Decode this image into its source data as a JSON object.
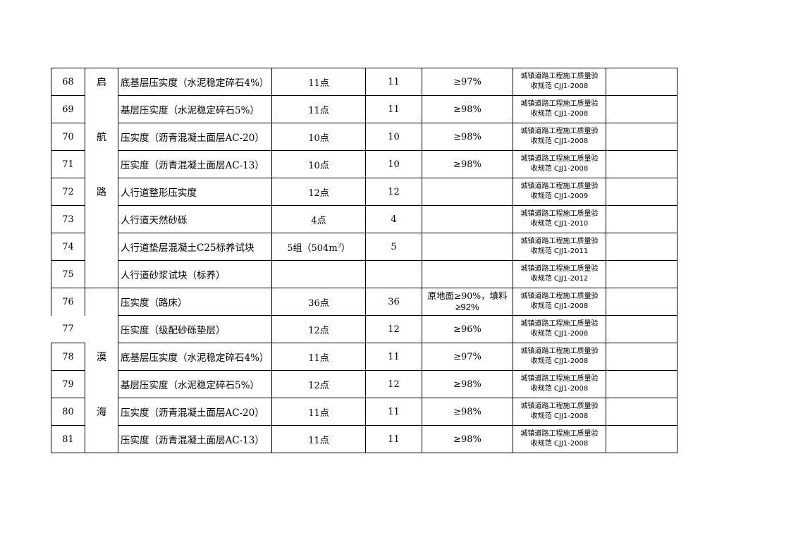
{
  "rows": [
    {
      "no": "68",
      "group": "启",
      "item": "底基层压实度（水泥稳定碎石4%）",
      "qty": "11点",
      "count": "11",
      "req": "≥97%",
      "std1": "城镇道路工程施工质量验",
      "std2": "收规范 CJJ1-2008",
      "remark": ""
    },
    {
      "no": "69",
      "group": "",
      "item": "基层压实度（水泥稳定碎石5%）",
      "qty": "11点",
      "count": "11",
      "req": "≥98%",
      "std1": "城镇道路工程施工质量验",
      "std2": "收规范 CJJ1-2008",
      "remark": ""
    },
    {
      "no": "70",
      "group": "航",
      "item": "压实度（沥青混凝土面层AC-20）",
      "qty": "10点",
      "count": "10",
      "req": "≥98%",
      "std1": "城镇道路工程施工质量验",
      "std2": "收规范 CJJ1-2008",
      "remark": ""
    },
    {
      "no": "71",
      "group": "",
      "item": "压实度（沥青混凝土面层AC-13）",
      "qty": "10点",
      "count": "10",
      "req": "≥98%",
      "std1": "城镇道路工程施工质量验",
      "std2": "收规范 CJJ1-2008",
      "remark": ""
    },
    {
      "no": "72",
      "group": "路",
      "item": "人行道整形压实度",
      "qty": "12点",
      "count": "12",
      "req": "",
      "std1": "城镇道路工程施工质量验",
      "std2": "收规范 CJJ1-2009",
      "remark": ""
    },
    {
      "no": "73",
      "group": "",
      "item": "人行道天然砂砾",
      "qty": "4点",
      "count": "4",
      "req": "",
      "std1": "城镇道路工程施工质量验",
      "std2": "收规范 CJJ1-2010",
      "remark": ""
    },
    {
      "no": "74",
      "group": "",
      "item": "人行道垫层混凝土C25标养试块",
      "qty": "5组（504m",
      "qty_sup": "3",
      "qty_end": "）",
      "count": "5",
      "req": "",
      "std1": "城镇道路工程施工质量验",
      "std2": "收规范 CJJ1-2011",
      "remark": ""
    },
    {
      "no": "75",
      "group": "",
      "item": "人行道砂浆试块（标养）",
      "qty": "",
      "count": "",
      "req": "",
      "std1": "城镇道路工程施工质量验",
      "std2": "收规范 CJJ1-2012",
      "remark": ""
    },
    {
      "no": "76",
      "group": "",
      "item": "压实度（路床）",
      "qty": "36点",
      "count": "36",
      "req": "原地面≥90%，填料",
      "req_b": "≥92%",
      "std1": "城镇道路工程施工质量验",
      "std2": "收规范 CJJ1-2008",
      "remark": ""
    },
    {
      "no": "77",
      "group": "",
      "item": "压实度（级配砂砾垫层）",
      "qty": "12点",
      "count": "12",
      "req": "≥96%",
      "std1": "城镇道路工程施工质量验",
      "std2": "收规范 CJJ1-2008",
      "remark": ""
    },
    {
      "no": "78",
      "group": "漠",
      "item": "底基层压实度（水泥稳定碎石4%）",
      "qty": "11点",
      "count": "11",
      "req": "≥97%",
      "std1": "城镇道路工程施工质量验",
      "std2": "收规范 CJJ1-2008",
      "remark": ""
    },
    {
      "no": "79",
      "group": "",
      "item": "基层压实度（水泥稳定碎石5%）",
      "qty": "12点",
      "count": "12",
      "req": "≥98%",
      "std1": "城镇道路工程施工质量验",
      "std2": "收规范 CJJ1-2008",
      "remark": ""
    },
    {
      "no": "80",
      "group": "海",
      "item": "压实度（沥青混凝土面层AC-20）",
      "qty": "11点",
      "count": "11",
      "req": "≥98%",
      "std1": "城镇道路工程施工质量验",
      "std2": "收规范 CJJ1-2008",
      "remark": ""
    },
    {
      "no": "81",
      "group": "",
      "item": "压实度（沥青混凝土面层AC-13）",
      "qty": "11点",
      "count": "11",
      "req": "≥98%",
      "std1": "城镇道路工程施工质量验",
      "std2": "收规范 CJJ1-2008",
      "remark": ""
    }
  ]
}
